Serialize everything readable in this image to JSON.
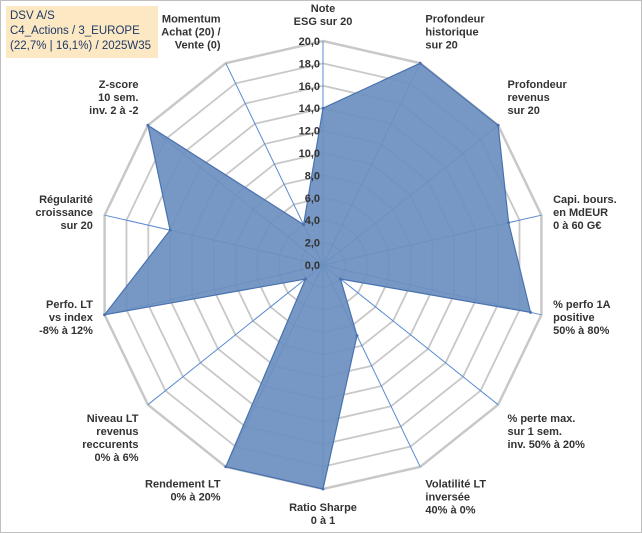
{
  "title_box": {
    "line1": "DSV A/S",
    "line2": "C4_Actions / 3_EUROPE",
    "line3": "(22,7% | 16,1%) / 2025W35"
  },
  "chart_data": {
    "type": "radar",
    "title": "DSV A/S",
    "rlim": [
      0,
      20
    ],
    "ticks": [
      "0,0",
      "2,0",
      "4,0",
      "6,0",
      "8,0",
      "10,0",
      "12,0",
      "14,0",
      "16,0",
      "18,0",
      "20,0"
    ],
    "grid": true,
    "colors": {
      "fill": "#6b8fbf",
      "stroke": "#4a72b0",
      "grid": "#c8c8c8",
      "spoke": "#5b8bd0"
    },
    "axes": [
      {
        "label": [
          "Note",
          "ESG sur 20"
        ],
        "value": 14
      },
      {
        "label": [
          "Profondeur",
          "historique",
          "sur 20"
        ],
        "value": 20
      },
      {
        "label": [
          "Profondeur",
          "revenus",
          "sur 20"
        ],
        "value": 20
      },
      {
        "label": [
          "Capi. bours.",
          "en MdEUR",
          "0 à 60 G€"
        ],
        "value": 17
      },
      {
        "label": [
          "% perfo 1A",
          "positive",
          "50% à 80%"
        ],
        "value": 19
      },
      {
        "label": [
          "% perte max.",
          "sur 1 sem.",
          "inv. 50% à 20%"
        ],
        "value": 2
      },
      {
        "label": [
          "Volatilité LT",
          "inversée",
          "40% à 0%"
        ],
        "value": 7
      },
      {
        "label": [
          "Ratio Sharpe",
          "0 à 1"
        ],
        "value": 20
      },
      {
        "label": [
          "Rendement LT",
          "0% à 20%"
        ],
        "value": 20
      },
      {
        "label": [
          "Niveau LT",
          "revenus",
          "reccurents",
          "0% à 6%"
        ],
        "value": 2
      },
      {
        "label": [
          "Perfo. LT",
          "vs index",
          "-8% à 12%"
        ],
        "value": 20
      },
      {
        "label": [
          "Régularité",
          "croissance",
          "sur 20"
        ],
        "value": 14
      },
      {
        "label": [
          "Z-score",
          "10 sem.",
          "inv. 2 à -2"
        ],
        "value": 20
      },
      {
        "label": [
          "Momentum",
          "Achat (20) /",
          "Vente (0)"
        ],
        "value": 4
      }
    ]
  }
}
